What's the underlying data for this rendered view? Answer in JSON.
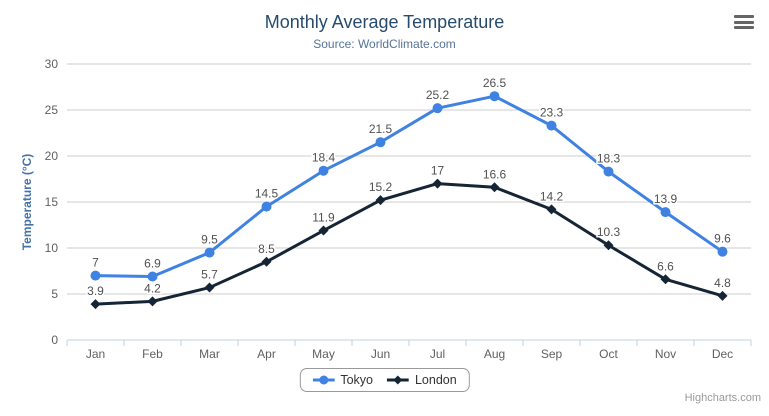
{
  "header": {
    "title": "Monthly Average Temperature",
    "subtitle": "Source: WorldClimate.com"
  },
  "chart_data": {
    "type": "line",
    "title": "Monthly Average Temperature",
    "subtitle": "Source: WorldClimate.com",
    "categories": [
      "Jan",
      "Feb",
      "Mar",
      "Apr",
      "May",
      "Jun",
      "Jul",
      "Aug",
      "Sep",
      "Oct",
      "Nov",
      "Dec"
    ],
    "series": [
      {
        "name": "Tokyo",
        "marker": "circle",
        "color": "#3f82e2",
        "values": [
          7,
          6.9,
          9.5,
          14.5,
          18.4,
          21.5,
          25.2,
          26.5,
          23.3,
          18.3,
          13.9,
          9.6
        ]
      },
      {
        "name": "London",
        "marker": "diamond",
        "color": "#152535",
        "values": [
          3.9,
          4.2,
          5.7,
          8.5,
          11.9,
          15.2,
          17,
          16.6,
          14.2,
          10.3,
          6.6,
          4.8
        ]
      }
    ],
    "xlabel": "",
    "ylabel": "Temperature (°C)",
    "ylim": [
      0,
      30
    ],
    "ytick_interval": 5,
    "grid": true,
    "legend_position": "bottom",
    "data_labels": true
  },
  "colors": {
    "title": "#274b6d",
    "subtitle": "#557499",
    "axis_title": "#4572a7",
    "tick_label": "#606060",
    "grid_line": "#cccccc",
    "axis_line": "#c0d0e0",
    "data_label": "#515151",
    "legend_border": "#999999",
    "legend_text": "#333333",
    "credit": "#999999",
    "menu_icon": "#666666"
  },
  "export_menu": {
    "tooltip": "Chart context menu"
  },
  "credits": {
    "label": "Highcharts.com"
  }
}
